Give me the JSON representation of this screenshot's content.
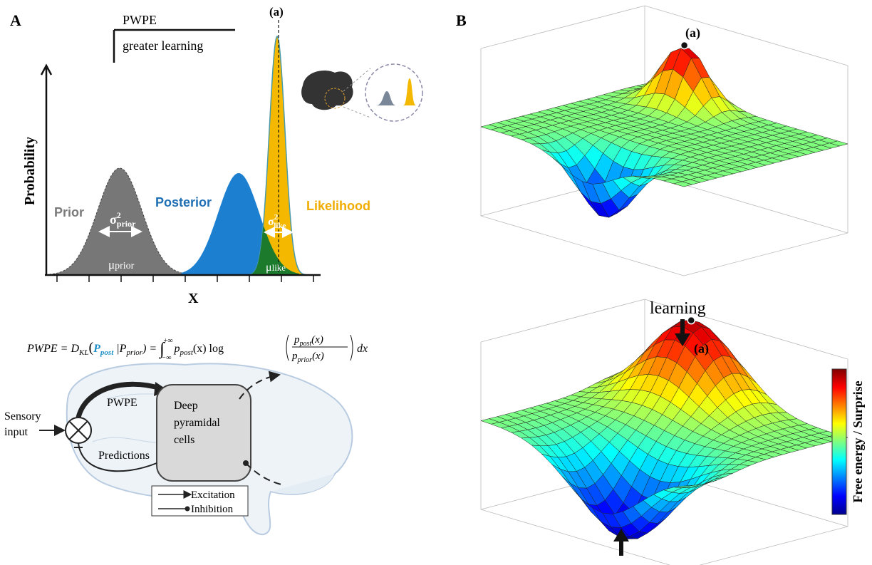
{
  "panel_a": {
    "letter": "A",
    "legend_title": "PWPE",
    "legend_text": "greater learning",
    "peak_label": "(a)",
    "y_axis_label": "Probability",
    "x_axis_label": "X",
    "prior": {
      "name": "Prior",
      "sigma": "σ",
      "sigma_sup": "2",
      "sigma_sub": "prior",
      "mu": "μ",
      "mu_sub": "prior"
    },
    "posterior": {
      "name": "Posterior"
    },
    "likelihood": {
      "name": "Likelihood",
      "sigma": "σ",
      "sigma_sup": "2",
      "sigma_sub": "like",
      "mu": "μ",
      "mu_sub": "like"
    }
  },
  "formula": {
    "left": "PWPE = D",
    "left_sub": "KL",
    "open": "(",
    "p_post": "P",
    "p_post_sub": "post",
    "p_prior": " |P",
    "p_prior_sub": "prior",
    "middle": ") = ",
    "integral": "∫",
    "upper": "+∞",
    "lower": "−∞",
    "integrand": "p",
    "integrand_sub": "post",
    "integrand_rest": "(x) log",
    "num": "p",
    "num_sub": "post",
    "num_rest": "(x)",
    "den": "p",
    "den_sub": "prior",
    "den_rest": "(x)",
    "end": "dx"
  },
  "circuit": {
    "input_1": "Sensory",
    "input_2": "input",
    "pwpe": "PWPE",
    "predictions": "Predictions",
    "cells_1": "Deep",
    "cells_2": "pyramidal",
    "cells_3": "cells",
    "excitation": "Excitation",
    "inhibition": "Inhibition"
  },
  "panel_b": {
    "letter": "B",
    "top_peak_label": "(a)",
    "bottom_peak_label": "(a)",
    "learning": "learning",
    "colorbar_label": "Free energy / Surprise"
  }
}
